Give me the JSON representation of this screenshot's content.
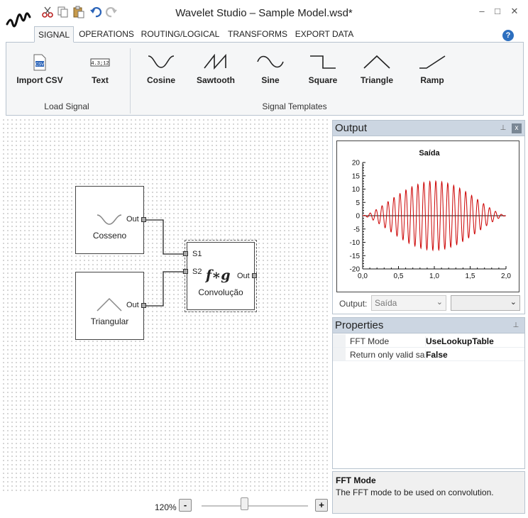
{
  "window": {
    "title": "Wavelet Studio – Sample Model.wsd*",
    "minimize": "–",
    "maximize": "□",
    "close": "✕"
  },
  "tabs": [
    {
      "label": "SIGNAL",
      "active": true
    },
    {
      "label": "OPERATIONS"
    },
    {
      "label": "ROUTING/LOGICAL"
    },
    {
      "label": "TRANSFORMS"
    },
    {
      "label": "EXPORT DATA"
    }
  ],
  "help": "?",
  "ribbon": {
    "load_signal": {
      "label": "Load Signal",
      "import_csv": "Import CSV",
      "text": "Text",
      "text_icon_glyph": "4.3;12"
    },
    "signal_templates": {
      "label": "Signal Templates",
      "items": [
        "Cosine",
        "Sawtooth",
        "Sine",
        "Square",
        "Triangle",
        "Ramp"
      ]
    }
  },
  "canvas": {
    "blocks": {
      "cosseno": {
        "title": "Cosseno",
        "out": "Out"
      },
      "triangular": {
        "title": "Triangular",
        "out": "Out"
      },
      "convolucao": {
        "title": "Convolução",
        "formula": "f∗g",
        "s1": "S1",
        "s2": "S2",
        "out": "Out"
      }
    }
  },
  "zoom": {
    "label": "120%",
    "minus": "-",
    "plus": "+",
    "level": 0.4
  },
  "output_panel": {
    "title": "Output",
    "pin": "⊥",
    "close": "x",
    "output_label": "Output:",
    "selected": "Saída",
    "dropdown_arrow": "⌄"
  },
  "chart_data": {
    "type": "line",
    "title": "Saída",
    "xlim": [
      0,
      2
    ],
    "ylim": [
      -20,
      20
    ],
    "xticks": [
      "0,0",
      "0,5",
      "1,0",
      "1,5",
      "2,0"
    ],
    "yticks": [
      "20",
      "15",
      "10",
      "5",
      "0",
      "-5",
      "-10",
      "-15",
      "-20"
    ],
    "series": [
      {
        "color": "#cc0000",
        "description_of_shape": "sinusoid with ~24 cycles, amplitude envelope rising to ~13 at x=1.0 and falling back near 0 at x=2.0",
        "cycles": 24,
        "peak_amplitude": 13,
        "peak_x": 1.0
      }
    ],
    "grid": false
  },
  "properties_panel": {
    "title": "Properties",
    "pin": "⊥",
    "rows": [
      {
        "name": "FFT Mode",
        "value": "UseLookupTable"
      },
      {
        "name": "Return only valid samples",
        "value": "False"
      }
    ]
  },
  "description": {
    "title": "FFT Mode",
    "text": "The FFT mode to be used on convolution."
  },
  "colors": {
    "accent_blue": "#2d6fbf",
    "panel_header": "#ccd6e2",
    "signal_red": "#cc0000"
  }
}
